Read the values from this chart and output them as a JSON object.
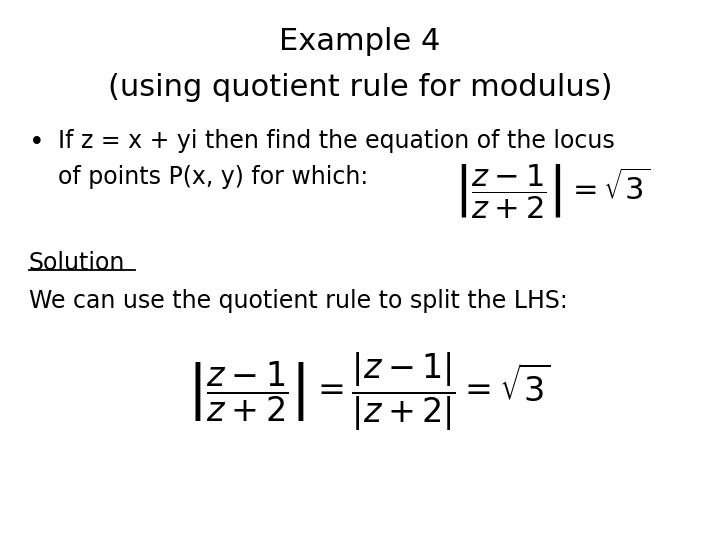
{
  "title_line1": "Example 4",
  "title_line2": "(using quotient rule for modulus)",
  "bullet_line1": "If z = x + yi then find the equation of the locus",
  "bullet_line2": "of points P(x, y) for which:",
  "solution_label": "Solution",
  "solution_text": "We can use the quotient rule to split the LHS:",
  "bg_color": "#ffffff",
  "text_color": "#000000",
  "title_fontsize": 22,
  "body_fontsize": 17,
  "solution_fontsize": 17,
  "formula_fontsize": 22
}
